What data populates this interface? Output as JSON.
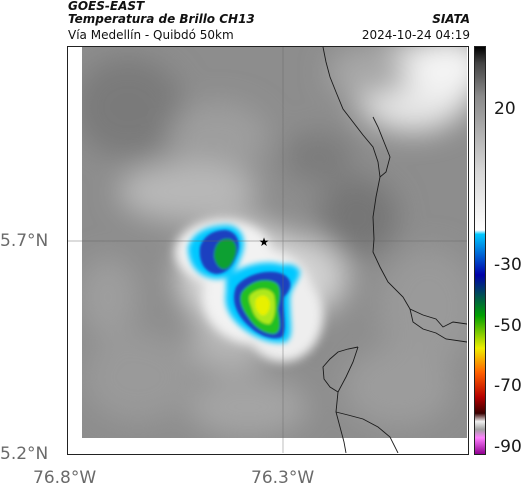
{
  "header": {
    "satellite": "GOES-EAST",
    "product": "Temperatura de Brillo CH13",
    "region": "Vía Medellín - Quibdó 50km",
    "organization": "SIATA",
    "datetime": "2024-10-24 04:19"
  },
  "axes": {
    "y_ticks": [
      "5.7°N",
      "5.2°N"
    ],
    "x_ticks": [
      "76.8°W",
      "76.3°W"
    ]
  },
  "colorbar": {
    "ticks": [
      "20",
      "-30",
      "-50",
      "-70",
      "-90"
    ],
    "stops": [
      "#000000",
      "#444444",
      "#8a8a8a",
      "#d5d5d5",
      "#ffffff",
      "#00c8ff",
      "#0000a8",
      "#00a000",
      "#eeee00",
      "#ff6000",
      "#b40000",
      "#3a0000",
      "#f0f0f0",
      "#a0a0a0",
      "#ff80ff",
      "#900090"
    ]
  },
  "map": {
    "marker_icon": "star-icon"
  }
}
